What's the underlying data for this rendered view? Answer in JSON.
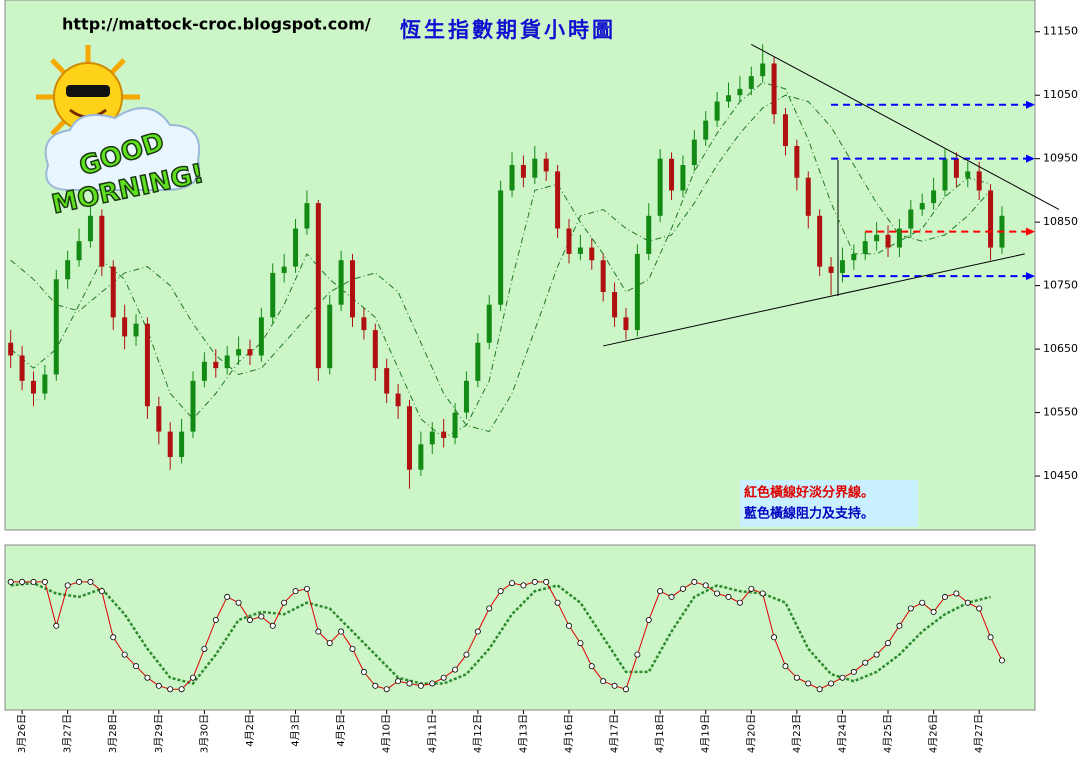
{
  "chart_data": {
    "type": "candlestick",
    "title": "恆生指數期貨小時圖",
    "subtitle": "http://mattock-croc.blogspot.com/",
    "logo_text": [
      "GOOD",
      "MORNING!"
    ],
    "notes": [
      {
        "text": "紅色橫線好淡分界線。",
        "color": "#e00000"
      },
      {
        "text": "藍色橫線阻力及支持。",
        "color": "#0000c0"
      }
    ],
    "xlim": [
      -0.5,
      89.9
    ],
    "ylim": [
      10365,
      11200
    ],
    "yticks": [
      10450,
      10550,
      10650,
      10750,
      10850,
      10950,
      11050,
      11150
    ],
    "xticks": [
      {
        "value": 1,
        "label": "3月26日"
      },
      {
        "value": 5,
        "label": "3月27日"
      },
      {
        "value": 9,
        "label": "3月28日"
      },
      {
        "value": 13,
        "label": "3月29日"
      },
      {
        "value": 17,
        "label": "3月30日"
      },
      {
        "value": 21,
        "label": "4月2日"
      },
      {
        "value": 25,
        "label": "4月3日"
      },
      {
        "value": 29,
        "label": "4月5日"
      },
      {
        "value": 33,
        "label": "4月10日"
      },
      {
        "value": 37,
        "label": "4月11日"
      },
      {
        "value": 41,
        "label": "4月12日"
      },
      {
        "value": 45,
        "label": "4月13日"
      },
      {
        "value": 49,
        "label": "4月16日"
      },
      {
        "value": 53,
        "label": "4月17日"
      },
      {
        "value": 57,
        "label": "4月18日"
      },
      {
        "value": 61,
        "label": "4月19日"
      },
      {
        "value": 65,
        "label": "4月20日"
      },
      {
        "value": 69,
        "label": "4月23日"
      },
      {
        "value": 73,
        "label": "4月24日"
      },
      {
        "value": 77,
        "label": "4月25日"
      },
      {
        "value": 81,
        "label": "4月26日"
      },
      {
        "value": 85,
        "label": "4月27日"
      }
    ],
    "open": [
      10660,
      10640,
      10600,
      10580,
      10610,
      10760,
      10790,
      10820,
      10860,
      10780,
      10700,
      10670,
      10690,
      10560,
      10520,
      10480,
      10520,
      10600,
      10630,
      10620,
      10640,
      10650,
      10640,
      10700,
      10770,
      10780,
      10840,
      10880,
      10620,
      10720,
      10790,
      10700,
      10680,
      10620,
      10580,
      10560,
      10460,
      10500,
      10520,
      10510,
      10550,
      10600,
      10660,
      10720,
      10900,
      10940,
      10920,
      10950,
      10930,
      10840,
      10800,
      10810,
      10790,
      10740,
      10700,
      10680,
      10800,
      10860,
      10950,
      10900,
      10940,
      10980,
      11010,
      11040,
      11050,
      11060,
      11080,
      11100,
      11020,
      10970,
      10920,
      10860,
      10780,
      10770,
      10790,
      10800,
      10820,
      10830,
      10810,
      10840,
      10870,
      10880,
      10900,
      10950,
      10920,
      10930,
      10900,
      10810
    ],
    "high": [
      10680,
      10655,
      10615,
      10625,
      10775,
      10805,
      10840,
      10875,
      10870,
      10790,
      10720,
      10705,
      10700,
      10575,
      10535,
      10540,
      10615,
      10645,
      10650,
      10655,
      10670,
      10665,
      10715,
      10785,
      10800,
      10855,
      10900,
      10885,
      10735,
      10805,
      10800,
      10715,
      10690,
      10635,
      10595,
      10570,
      10520,
      10535,
      10540,
      10565,
      10615,
      10675,
      10735,
      10915,
      10960,
      10955,
      10970,
      10960,
      10940,
      10855,
      10830,
      10825,
      10800,
      10755,
      10715,
      10815,
      10880,
      10965,
      10960,
      10955,
      10995,
      11025,
      11055,
      11070,
      11080,
      11095,
      11130,
      11110,
      11030,
      10980,
      10930,
      10870,
      10795,
      10810,
      10815,
      10835,
      10850,
      10845,
      10855,
      10885,
      10895,
      10920,
      10965,
      10960,
      10945,
      10945,
      10910,
      10875
    ],
    "low": [
      10620,
      10585,
      10560,
      10570,
      10600,
      10745,
      10780,
      10810,
      10765,
      10680,
      10650,
      10655,
      10540,
      10500,
      10460,
      10470,
      10510,
      10590,
      10605,
      10610,
      10625,
      10625,
      10630,
      10690,
      10755,
      10770,
      10830,
      10600,
      10610,
      10710,
      10685,
      10665,
      10600,
      10565,
      10540,
      10430,
      10450,
      10485,
      10495,
      10500,
      10540,
      10590,
      10650,
      10710,
      10890,
      10905,
      10910,
      10915,
      10825,
      10785,
      10790,
      10775,
      10725,
      10685,
      10665,
      10670,
      10790,
      10850,
      10885,
      10890,
      10930,
      10970,
      11000,
      11030,
      11040,
      11050,
      11070,
      11005,
      10955,
      10900,
      10840,
      10765,
      10735,
      10755,
      10775,
      10790,
      10805,
      10795,
      10795,
      10825,
      10860,
      10870,
      10890,
      10905,
      10905,
      10885,
      10790,
      10800
    ],
    "close": [
      10640,
      10600,
      10580,
      10610,
      10760,
      10790,
      10820,
      10860,
      10780,
      10700,
      10670,
      10690,
      10560,
      10520,
      10480,
      10520,
      10600,
      10630,
      10620,
      10640,
      10650,
      10640,
      10700,
      10770,
      10780,
      10840,
      10880,
      10620,
      10720,
      10790,
      10700,
      10680,
      10620,
      10580,
      10560,
      10460,
      10500,
      10520,
      10510,
      10550,
      10600,
      10660,
      10720,
      10900,
      10940,
      10920,
      10950,
      10930,
      10840,
      10800,
      10810,
      10790,
      10740,
      10700,
      10680,
      10800,
      10860,
      10950,
      10900,
      10940,
      10980,
      11010,
      11040,
      11050,
      11060,
      11080,
      11100,
      11020,
      10970,
      10920,
      10860,
      10780,
      10770,
      10790,
      10800,
      10820,
      10830,
      10810,
      10840,
      10870,
      10880,
      10900,
      10950,
      10920,
      10930,
      10900,
      10810,
      10860
    ],
    "up_color": "#138a13",
    "down_color": "#b01010",
    "series_x": [
      0,
      2,
      4,
      6,
      8,
      10,
      12,
      14,
      16,
      18,
      20,
      22,
      24,
      26,
      28,
      30,
      32,
      34,
      36,
      38,
      40,
      42,
      44,
      46,
      48,
      50,
      52,
      54,
      56,
      58,
      60,
      62,
      64,
      66,
      68,
      70,
      72,
      74,
      76,
      78,
      80,
      82,
      84,
      86
    ],
    "ma_series": [
      {
        "color": "#1f7a1f",
        "values": [
          10650,
          10620,
          10650,
          10720,
          10790,
          10760,
          10680,
          10580,
          10540,
          10580,
          10630,
          10660,
          10720,
          10800,
          10760,
          10730,
          10700,
          10620,
          10540,
          10510,
          10530,
          10600,
          10760,
          10900,
          10910,
          10850,
          10800,
          10740,
          10760,
          10840,
          10930,
          10990,
          11040,
          11070,
          11060,
          10980,
          10880,
          10800,
          10800,
          10820,
          10840,
          10890,
          10920,
          10910
        ]
      },
      {
        "color": "#1f7a1f",
        "values": [
          10790,
          10760,
          10720,
          10710,
          10740,
          10770,
          10780,
          10750,
          10690,
          10640,
          10610,
          10620,
          10660,
          10700,
          10740,
          10760,
          10770,
          10740,
          10660,
          10580,
          10530,
          10520,
          10580,
          10680,
          10780,
          10860,
          10870,
          10840,
          10820,
          10830,
          10880,
          10940,
          10990,
          11030,
          11050,
          11040,
          11000,
          10940,
          10880,
          10830,
          10820,
          10830,
          10860,
          10900
        ]
      }
    ],
    "levels": [
      {
        "value": 11035,
        "color": "#0000ff",
        "start": 72
      },
      {
        "value": 10950,
        "color": "#0000ff",
        "start": 72
      },
      {
        "value": 10835,
        "color": "#ff0000",
        "start": 75
      },
      {
        "value": 10765,
        "color": "#0000ff",
        "start": 73
      }
    ],
    "trendlines": [
      {
        "x": [
          65,
          92
        ],
        "values": [
          11130,
          10870
        ]
      },
      {
        "x": [
          52,
          89
        ],
        "values": [
          10655,
          10800
        ]
      }
    ],
    "oscillator": {
      "ylim": [
        -13,
        130
      ],
      "k": {
        "color": "#e00000",
        "values": [
          98,
          98,
          98,
          98,
          60,
          95,
          98,
          98,
          90,
          50,
          35,
          25,
          15,
          8,
          5,
          5,
          15,
          40,
          65,
          85,
          80,
          65,
          68,
          60,
          80,
          90,
          92,
          55,
          45,
          55,
          40,
          20,
          8,
          5,
          12,
          10,
          8,
          10,
          15,
          22,
          35,
          55,
          75,
          90,
          97,
          95,
          98,
          98,
          80,
          60,
          45,
          25,
          12,
          8,
          5,
          35,
          65,
          90,
          85,
          92,
          98,
          95,
          88,
          85,
          80,
          92,
          88,
          50,
          25,
          15,
          10,
          5,
          10,
          15,
          20,
          28,
          35,
          45,
          60,
          75,
          80,
          72,
          85,
          88,
          80,
          75,
          50,
          30
        ]
      },
      "d": {
        "color": "#2e8b2e",
        "values": [
          95,
          97,
          88,
          85,
          92,
          70,
          40,
          15,
          10,
          35,
          65,
          72,
          70,
          80,
          75,
          55,
          35,
          15,
          10,
          10,
          18,
          40,
          70,
          90,
          95,
          80,
          50,
          20,
          20,
          55,
          85,
          95,
          90,
          88,
          80,
          40,
          18,
          12,
          20,
          35,
          55,
          70,
          80,
          85
        ]
      }
    }
  }
}
